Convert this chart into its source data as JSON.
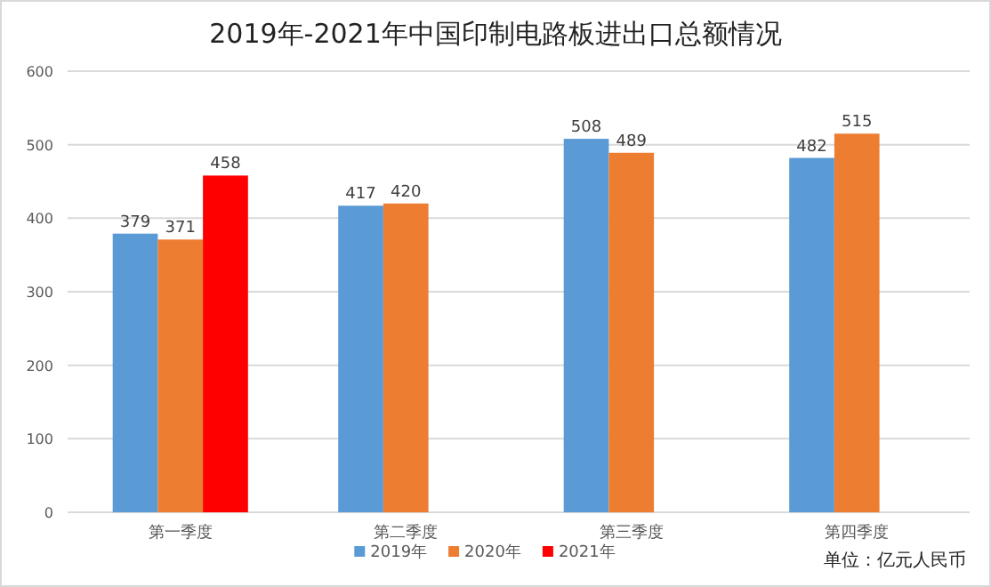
{
  "chart_data": {
    "type": "bar",
    "title": "2019年-2021年中国印制电路板进出口总额情况",
    "categories": [
      "第一季度",
      "第二季度",
      "第三季度",
      "第四季度"
    ],
    "series": [
      {
        "name": "2019年",
        "color": "#5b9bd5",
        "values": [
          379,
          417,
          508,
          482
        ]
      },
      {
        "name": "2020年",
        "color": "#ed7d31",
        "values": [
          371,
          420,
          489,
          515
        ]
      },
      {
        "name": "2021年",
        "color": "#ff0000",
        "values": [
          458,
          null,
          null,
          null
        ]
      }
    ],
    "ylim": [
      0,
      600
    ],
    "yticks": [
      0,
      100,
      200,
      300,
      400,
      500,
      600
    ],
    "grid": "y",
    "legend": "bottom",
    "data_labels": true,
    "annotations": [
      "单位：亿元人民币"
    ]
  }
}
